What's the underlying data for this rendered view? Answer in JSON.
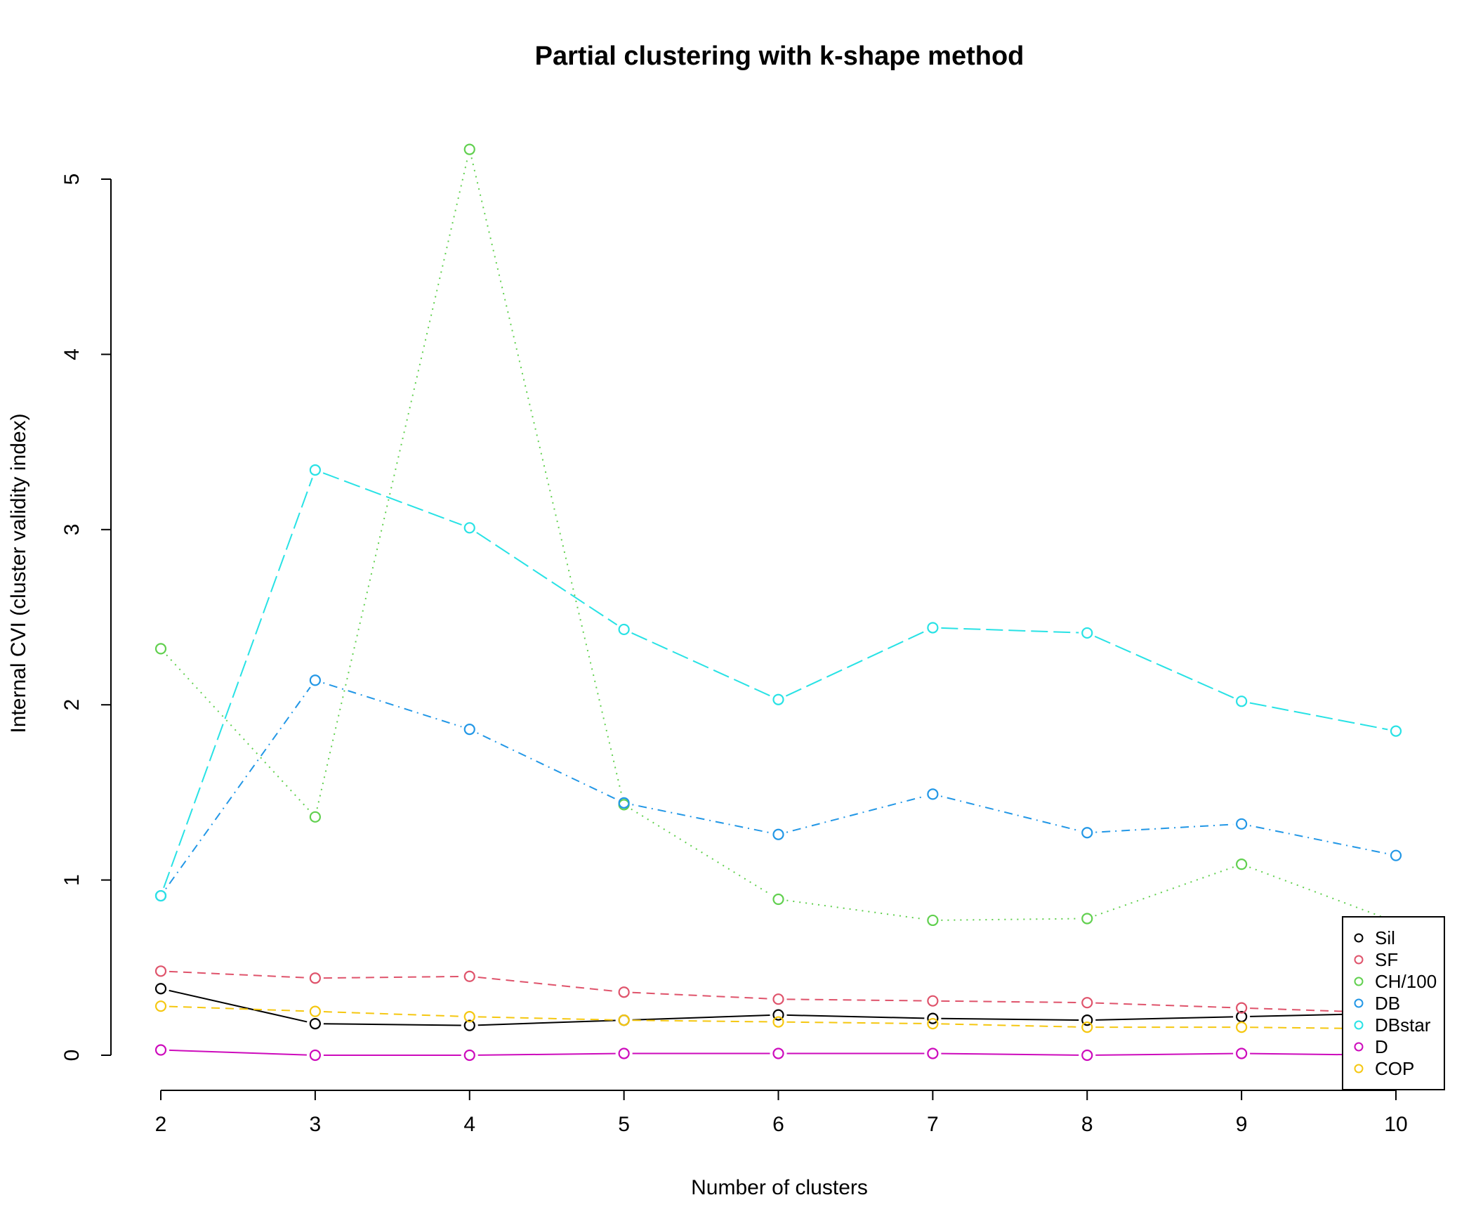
{
  "chart_data": {
    "type": "line",
    "title": "Partial clustering with k-shape method",
    "xlabel": "Number of clusters",
    "ylabel": "Internal CVI (cluster validity index)",
    "x": [
      2,
      3,
      4,
      5,
      6,
      7,
      8,
      9,
      10
    ],
    "xlim": [
      2,
      10
    ],
    "ylim": [
      0,
      5
    ],
    "x_ticks": [
      "2",
      "3",
      "4",
      "5",
      "6",
      "7",
      "8",
      "9",
      "10"
    ],
    "y_ticks": [
      "0",
      "1",
      "2",
      "3",
      "4",
      "5"
    ],
    "grid": false,
    "legend_position": "bottom-right",
    "series": [
      {
        "name": "Sil",
        "color": "#000000",
        "dash": "solid",
        "values": [
          0.38,
          0.18,
          0.17,
          0.2,
          0.23,
          0.21,
          0.2,
          0.22,
          0.24
        ]
      },
      {
        "name": "SF",
        "color": "#DF536B",
        "dash": "dashed",
        "values": [
          0.48,
          0.44,
          0.45,
          0.36,
          0.32,
          0.31,
          0.3,
          0.27,
          0.24
        ]
      },
      {
        "name": "CH/100",
        "color": "#61D04F",
        "dash": "dotted",
        "values": [
          2.32,
          1.36,
          5.17,
          1.43,
          0.89,
          0.77,
          0.78,
          1.09,
          0.76
        ]
      },
      {
        "name": "DB",
        "color": "#2297E6",
        "dash": "dotdash",
        "values": [
          0.91,
          2.14,
          1.86,
          1.44,
          1.26,
          1.49,
          1.27,
          1.32,
          1.14
        ]
      },
      {
        "name": "DBstar",
        "color": "#28E2E5",
        "dash": "longdash",
        "values": [
          0.91,
          3.34,
          3.01,
          2.43,
          2.03,
          2.44,
          2.41,
          2.02,
          1.85
        ]
      },
      {
        "name": "D",
        "color": "#CD0BBC",
        "dash": "solid",
        "values": [
          0.03,
          0.0,
          0.0,
          0.01,
          0.01,
          0.01,
          0.0,
          0.01,
          0.0
        ]
      },
      {
        "name": "COP",
        "color": "#F5C710",
        "dash": "dashed",
        "values": [
          0.28,
          0.25,
          0.22,
          0.2,
          0.19,
          0.18,
          0.16,
          0.16,
          0.15
        ]
      }
    ]
  }
}
